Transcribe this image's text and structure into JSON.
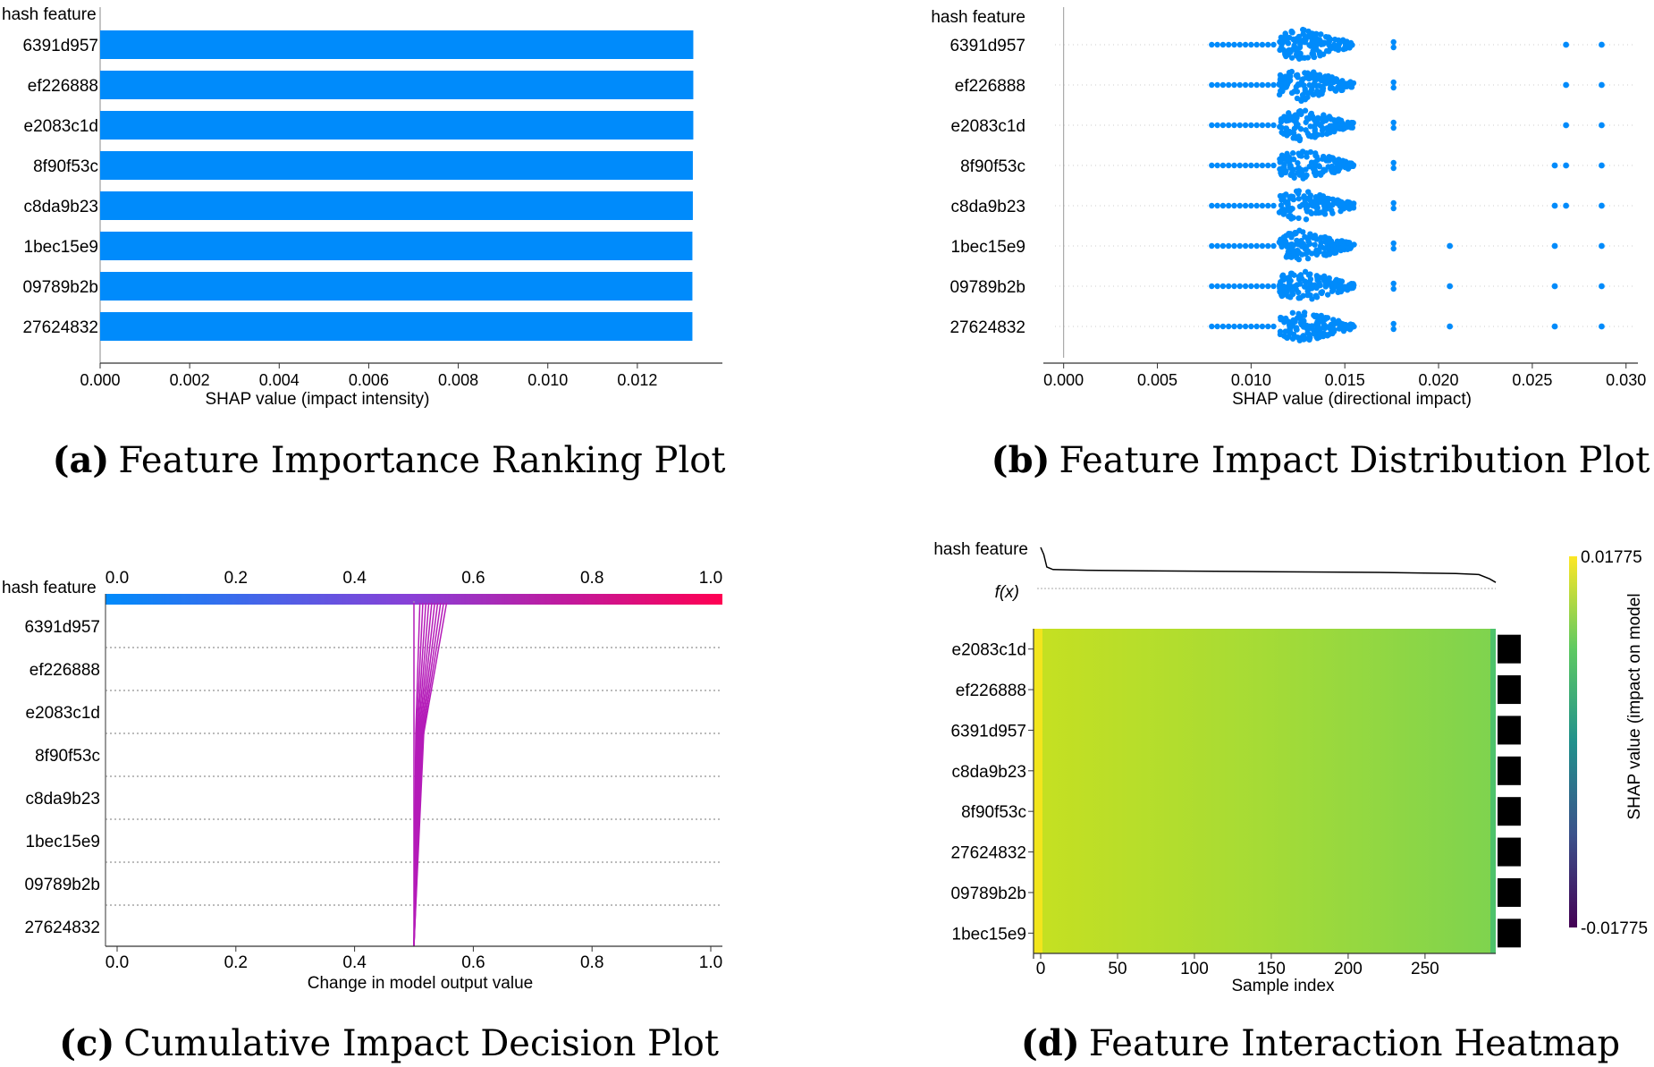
{
  "figure": {
    "captions": [
      {
        "label": "(a)",
        "text": "Feature Importance Ranking Plot"
      },
      {
        "label": "(b)",
        "text": "Feature Impact Distribution Plot"
      },
      {
        "label": "(c)",
        "text": "Cumulative Impact Decision Plot"
      },
      {
        "label": "(d)",
        "text": "Feature Interaction Heatmap"
      }
    ]
  },
  "colors": {
    "shap_blue": "#1e88e5",
    "shap_pink": "#ff0052",
    "axis": "#333333",
    "grid": "#999999",
    "viridis_top": "#fde725",
    "viridis_bottom": "#440154"
  },
  "chart_data": [
    {
      "id": "a",
      "type": "bar",
      "orientation": "horizontal",
      "title": "",
      "ylabel": "hash feature",
      "xlabel": "SHAP value (impact intensity)",
      "categories": [
        "6391d957",
        "ef226888",
        "e2083c1d",
        "8f90f53c",
        "c8da9b23",
        "1bec15e9",
        "09789b2b",
        "27624832"
      ],
      "values": [
        0.01325,
        0.01325,
        0.01325,
        0.01324,
        0.01324,
        0.01323,
        0.01323,
        0.01323
      ],
      "xlim": [
        0,
        0.0139
      ],
      "xticks": [
        "0.000",
        "0.002",
        "0.004",
        "0.006",
        "0.008",
        "0.010",
        "0.012"
      ],
      "xtick_values": [
        0,
        0.002,
        0.004,
        0.006,
        0.008,
        0.01,
        0.012
      ]
    },
    {
      "id": "b",
      "type": "scatter",
      "subtype": "beeswarm",
      "ylabel": "hash feature",
      "xlabel": "SHAP value (directional impact)",
      "categories": [
        "6391d957",
        "ef226888",
        "e2083c1d",
        "8f90f53c",
        "c8da9b23",
        "1bec15e9",
        "09789b2b",
        "27624832"
      ],
      "xlim": [
        -0.0007,
        0.0303
      ],
      "xticks": [
        "0.000",
        "0.005",
        "0.010",
        "0.015",
        "0.020",
        "0.025",
        "0.030"
      ],
      "xtick_values": [
        0,
        0.005,
        0.01,
        0.015,
        0.02,
        0.025,
        0.03
      ],
      "dense_range": [
        0.0115,
        0.0155
      ],
      "dense_center": 0.0127,
      "sparse_left": [
        0.0079,
        0.0082,
        0.0085,
        0.0088,
        0.0091,
        0.0094,
        0.0097,
        0.01,
        0.0103,
        0.0106,
        0.0109,
        0.0112
      ],
      "outliers": [
        [
          0.0176,
          0.0268,
          0.0287
        ],
        [
          0.0176,
          0.0268,
          0.0287
        ],
        [
          0.0176,
          0.0268,
          0.0287
        ],
        [
          0.0176,
          0.0262,
          0.0268,
          0.0287
        ],
        [
          0.0176,
          0.0262,
          0.0268,
          0.0287
        ],
        [
          0.0176,
          0.0206,
          0.0262,
          0.0287
        ],
        [
          0.0176,
          0.0206,
          0.0262,
          0.0287
        ],
        [
          0.0176,
          0.0206,
          0.0262,
          0.0287
        ]
      ]
    },
    {
      "id": "c",
      "type": "line",
      "subtype": "decision",
      "ylabel": "hash feature",
      "xlabel": "Change in model output value",
      "categories": [
        "6391d957",
        "ef226888",
        "e2083c1d",
        "8f90f53c",
        "c8da9b23",
        "1bec15e9",
        "09789b2b",
        "27624832"
      ],
      "xlim": [
        -0.02,
        1.02
      ],
      "xticks": [
        "0.0",
        "0.2",
        "0.4",
        "0.6",
        "0.8",
        "1.0"
      ],
      "xtick_values": [
        0,
        0.2,
        0.4,
        0.6,
        0.8,
        1.0
      ],
      "base_value": 0.5,
      "final_values": [
        0.5,
        0.51,
        0.515,
        0.52,
        0.525,
        0.53,
        0.535,
        0.54,
        0.545,
        0.55,
        0.555
      ]
    },
    {
      "id": "d",
      "type": "heatmap",
      "ylabel": "hash feature",
      "xlabel": "Sample index",
      "fx_label": "f(x)",
      "categories": [
        "e2083c1d",
        "ef226888",
        "6391d957",
        "c8da9b23",
        "8f90f53c",
        "27624832",
        "09789b2b",
        "1bec15e9"
      ],
      "xlim": [
        0,
        296
      ],
      "xticks": [
        "0",
        "50",
        "100",
        "150",
        "200",
        "250"
      ],
      "xtick_values": [
        0,
        50,
        100,
        150,
        200,
        250
      ],
      "colorbar": {
        "label": "SHAP value (impact on model",
        "max": "0.01775",
        "min": "-0.01775"
      },
      "fx_curve": [
        [
          0,
          1.0
        ],
        [
          2,
          0.8
        ],
        [
          4,
          0.45
        ],
        [
          8,
          0.38
        ],
        [
          30,
          0.36
        ],
        [
          80,
          0.34
        ],
        [
          150,
          0.32
        ],
        [
          220,
          0.3
        ],
        [
          270,
          0.27
        ],
        [
          285,
          0.24
        ],
        [
          292,
          0.12
        ],
        [
          296,
          0.02
        ]
      ]
    }
  ]
}
